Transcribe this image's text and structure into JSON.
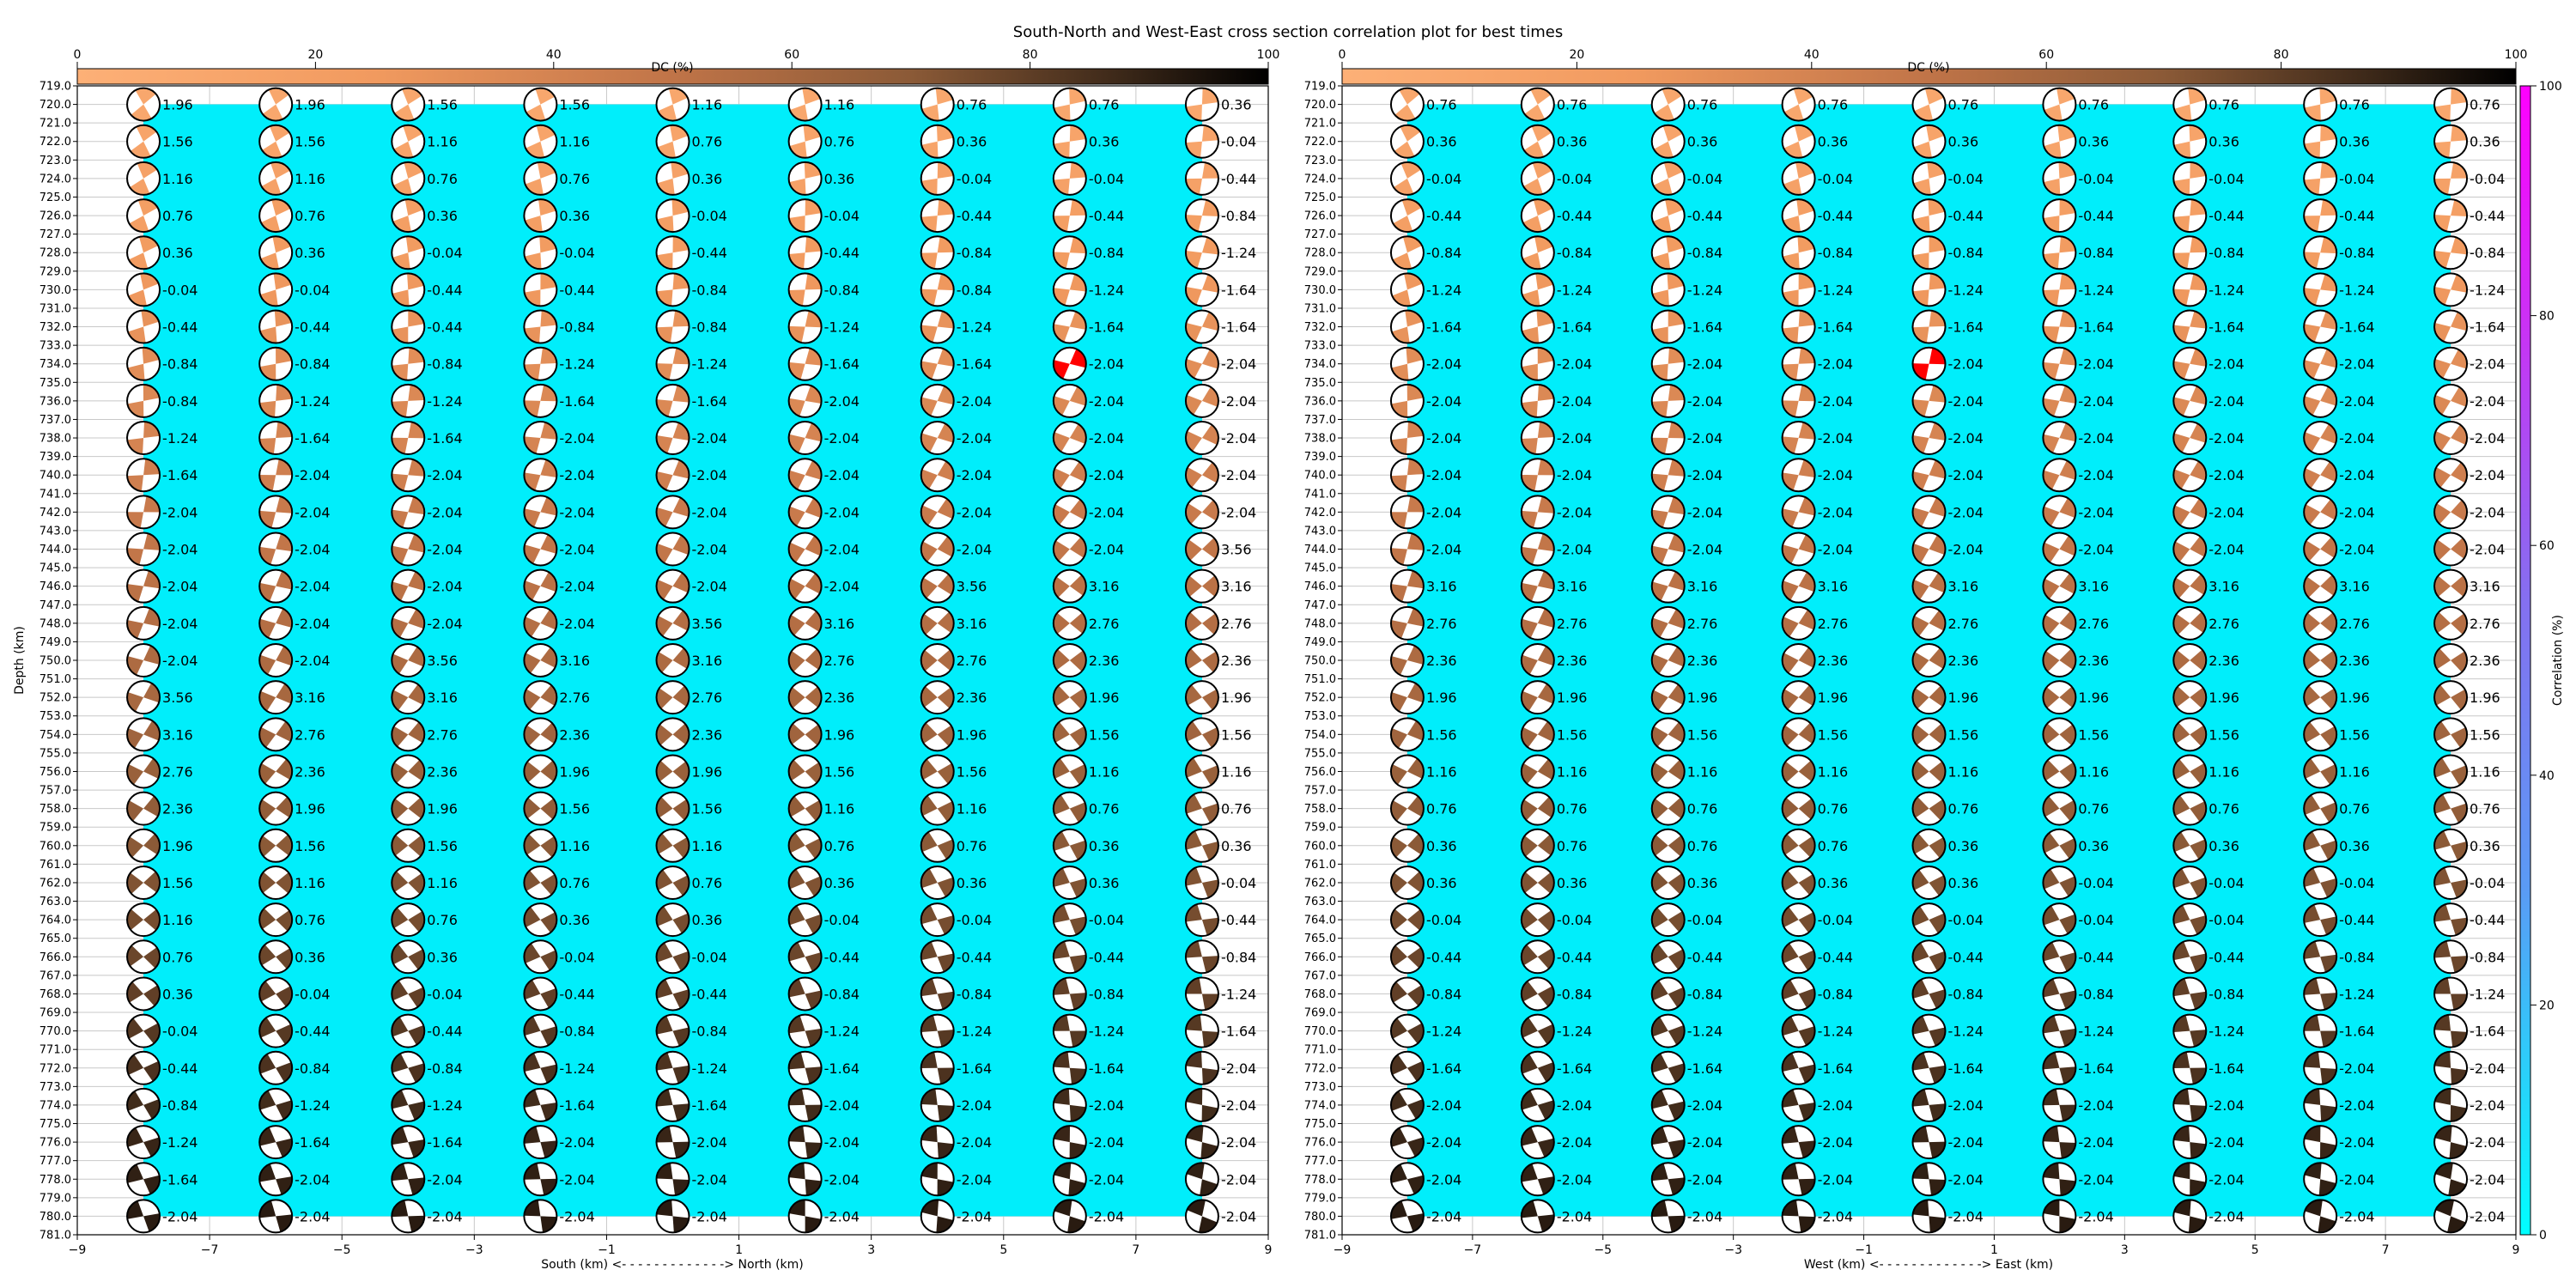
{
  "title": "South-North and West-East cross section correlation plot for best times",
  "colors": {
    "background_fill": "#00eefb",
    "best_fill": "#ff0000",
    "grid": "#c8c8c8",
    "dc_colormap": [
      "#fdb077",
      "#f19a5f",
      "#c07448",
      "#8b5a37",
      "#3a2718",
      "#000000"
    ],
    "corr_colormap": [
      "#00ffff",
      "#5a9bf5",
      "#8470f0",
      "#cc30f5",
      "#ff00ff"
    ]
  },
  "chart_data": [
    {
      "type": "scatter",
      "panel": "left",
      "xlabel": "South (km) <- - - - - - - - - - - - -> North (km)",
      "ylabel": "Depth (km)",
      "xlim": [
        -9,
        9
      ],
      "ylim": [
        781.0,
        719.0
      ],
      "x_ticks": [
        "−9",
        "−7",
        "−5",
        "−3",
        "−1",
        "1",
        "3",
        "5",
        "7",
        "9"
      ],
      "y_ticks": [
        "719.0",
        "720.0",
        "721.0",
        "722.0",
        "723.0",
        "724.0",
        "725.0",
        "726.0",
        "727.0",
        "728.0",
        "729.0",
        "730.0",
        "731.0",
        "732.0",
        "733.0",
        "734.0",
        "735.0",
        "736.0",
        "737.0",
        "738.0",
        "739.0",
        "740.0",
        "741.0",
        "742.0",
        "743.0",
        "744.0",
        "745.0",
        "746.0",
        "747.0",
        "748.0",
        "749.0",
        "750.0",
        "751.0",
        "752.0",
        "753.0",
        "754.0",
        "755.0",
        "756.0",
        "757.0",
        "758.0",
        "759.0",
        "760.0",
        "761.0",
        "762.0",
        "763.0",
        "764.0",
        "765.0",
        "766.0",
        "767.0",
        "768.0",
        "769.0",
        "770.0",
        "771.0",
        "772.0",
        "773.0",
        "774.0",
        "775.0",
        "776.0",
        "777.0",
        "778.0",
        "779.0",
        "780.0",
        "781.0"
      ],
      "x_positions": [
        -8,
        -6,
        -4,
        -2,
        0,
        2,
        4,
        6,
        8
      ],
      "depths": [
        720,
        722,
        724,
        726,
        728,
        730,
        732,
        734,
        736,
        738,
        740,
        742,
        744,
        746,
        748,
        750,
        752,
        754,
        756,
        758,
        760,
        762,
        764,
        766,
        768,
        770,
        772,
        774,
        776,
        778,
        780
      ],
      "best": {
        "x": 6,
        "depth": 734
      },
      "time_labels": [
        [
          "1.96",
          "1.96",
          "1.56",
          "1.56",
          "1.16",
          "1.16",
          "0.76",
          "0.76",
          "0.36"
        ],
        [
          "1.56",
          "1.56",
          "1.16",
          "1.16",
          "0.76",
          "0.76",
          "0.36",
          "0.36",
          "-0.04"
        ],
        [
          "1.16",
          "1.16",
          "0.76",
          "0.76",
          "0.36",
          "0.36",
          "-0.04",
          "-0.04",
          "-0.44"
        ],
        [
          "0.76",
          "0.76",
          "0.36",
          "0.36",
          "-0.04",
          "-0.04",
          "-0.44",
          "-0.44",
          "-0.84"
        ],
        [
          "0.36",
          "0.36",
          "-0.04",
          "-0.04",
          "-0.44",
          "-0.44",
          "-0.84",
          "-0.84",
          "-1.24"
        ],
        [
          "-0.04",
          "-0.04",
          "-0.44",
          "-0.44",
          "-0.84",
          "-0.84",
          "-0.84",
          "-1.24",
          "-1.64"
        ],
        [
          "-0.44",
          "-0.44",
          "-0.44",
          "-0.84",
          "-0.84",
          "-1.24",
          "-1.24",
          "-1.64",
          "-1.64"
        ],
        [
          "-0.84",
          "-0.84",
          "-0.84",
          "-1.24",
          "-1.24",
          "-1.64",
          "-1.64",
          "-2.04",
          "-2.04"
        ],
        [
          "-0.84",
          "-1.24",
          "-1.24",
          "-1.64",
          "-1.64",
          "-2.04",
          "-2.04",
          "-2.04",
          "-2.04"
        ],
        [
          "-1.24",
          "-1.64",
          "-1.64",
          "-2.04",
          "-2.04",
          "-2.04",
          "-2.04",
          "-2.04",
          "-2.04"
        ],
        [
          "-1.64",
          "-2.04",
          "-2.04",
          "-2.04",
          "-2.04",
          "-2.04",
          "-2.04",
          "-2.04",
          "-2.04"
        ],
        [
          "-2.04",
          "-2.04",
          "-2.04",
          "-2.04",
          "-2.04",
          "-2.04",
          "-2.04",
          "-2.04",
          "-2.04"
        ],
        [
          "-2.04",
          "-2.04",
          "-2.04",
          "-2.04",
          "-2.04",
          "-2.04",
          "-2.04",
          "-2.04",
          "3.56"
        ],
        [
          "-2.04",
          "-2.04",
          "-2.04",
          "-2.04",
          "-2.04",
          "-2.04",
          "3.56",
          "3.16",
          "3.16"
        ],
        [
          "-2.04",
          "-2.04",
          "-2.04",
          "-2.04",
          "3.56",
          "3.16",
          "3.16",
          "2.76",
          "2.76"
        ],
        [
          "-2.04",
          "-2.04",
          "3.56",
          "3.16",
          "3.16",
          "2.76",
          "2.76",
          "2.36",
          "2.36"
        ],
        [
          "3.56",
          "3.16",
          "3.16",
          "2.76",
          "2.76",
          "2.36",
          "2.36",
          "1.96",
          "1.96"
        ],
        [
          "3.16",
          "2.76",
          "2.76",
          "2.36",
          "2.36",
          "1.96",
          "1.96",
          "1.56",
          "1.56"
        ],
        [
          "2.76",
          "2.36",
          "2.36",
          "1.96",
          "1.96",
          "1.56",
          "1.56",
          "1.16",
          "1.16"
        ],
        [
          "2.36",
          "1.96",
          "1.96",
          "1.56",
          "1.56",
          "1.16",
          "1.16",
          "0.76",
          "0.76"
        ],
        [
          "1.96",
          "1.56",
          "1.56",
          "1.16",
          "1.16",
          "0.76",
          "0.76",
          "0.36",
          "0.36"
        ],
        [
          "1.56",
          "1.16",
          "1.16",
          "0.76",
          "0.76",
          "0.36",
          "0.36",
          "0.36",
          "-0.04"
        ],
        [
          "1.16",
          "0.76",
          "0.76",
          "0.36",
          "0.36",
          "-0.04",
          "-0.04",
          "-0.04",
          "-0.44"
        ],
        [
          "0.76",
          "0.36",
          "0.36",
          "-0.04",
          "-0.04",
          "-0.44",
          "-0.44",
          "-0.44",
          "-0.84"
        ],
        [
          "0.36",
          "-0.04",
          "-0.04",
          "-0.44",
          "-0.44",
          "-0.84",
          "-0.84",
          "-0.84",
          "-1.24"
        ],
        [
          "-0.04",
          "-0.44",
          "-0.44",
          "-0.84",
          "-0.84",
          "-1.24",
          "-1.24",
          "-1.24",
          "-1.64"
        ],
        [
          "-0.44",
          "-0.84",
          "-0.84",
          "-1.24",
          "-1.24",
          "-1.64",
          "-1.64",
          "-1.64",
          "-2.04"
        ],
        [
          "-0.84",
          "-1.24",
          "-1.24",
          "-1.64",
          "-1.64",
          "-2.04",
          "-2.04",
          "-2.04",
          "-2.04"
        ],
        [
          "-1.24",
          "-1.64",
          "-1.64",
          "-2.04",
          "-2.04",
          "-2.04",
          "-2.04",
          "-2.04",
          "-2.04"
        ],
        [
          "-1.64",
          "-2.04",
          "-2.04",
          "-2.04",
          "-2.04",
          "-2.04",
          "-2.04",
          "-2.04",
          "-2.04"
        ],
        [
          "-2.04",
          "-2.04",
          "-2.04",
          "-2.04",
          "-2.04",
          "-2.04",
          "-2.04",
          "-2.04",
          "-2.04"
        ]
      ]
    },
    {
      "type": "scatter",
      "panel": "right",
      "xlabel": "West (km) <- - - - - - - - - - - - -> East (km)",
      "xlim": [
        -9,
        9
      ],
      "ylim": [
        781.0,
        719.0
      ],
      "x_ticks": [
        "−9",
        "−7",
        "−5",
        "−3",
        "−1",
        "1",
        "3",
        "5",
        "7",
        "9"
      ],
      "y_ticks": [
        "719.0",
        "720.0",
        "721.0",
        "722.0",
        "723.0",
        "724.0",
        "725.0",
        "726.0",
        "727.0",
        "728.0",
        "729.0",
        "730.0",
        "731.0",
        "732.0",
        "733.0",
        "734.0",
        "735.0",
        "736.0",
        "737.0",
        "738.0",
        "739.0",
        "740.0",
        "741.0",
        "742.0",
        "743.0",
        "744.0",
        "745.0",
        "746.0",
        "747.0",
        "748.0",
        "749.0",
        "750.0",
        "751.0",
        "752.0",
        "753.0",
        "754.0",
        "755.0",
        "756.0",
        "757.0",
        "758.0",
        "759.0",
        "760.0",
        "761.0",
        "762.0",
        "763.0",
        "764.0",
        "765.0",
        "766.0",
        "767.0",
        "768.0",
        "769.0",
        "770.0",
        "771.0",
        "772.0",
        "773.0",
        "774.0",
        "775.0",
        "776.0",
        "777.0",
        "778.0",
        "779.0",
        "780.0",
        "781.0"
      ],
      "x_positions": [
        -8,
        -6,
        -4,
        -2,
        0,
        2,
        4,
        6,
        8
      ],
      "depths": [
        720,
        722,
        724,
        726,
        728,
        730,
        732,
        734,
        736,
        738,
        740,
        742,
        744,
        746,
        748,
        750,
        752,
        754,
        756,
        758,
        760,
        762,
        764,
        766,
        768,
        770,
        772,
        774,
        776,
        778,
        780
      ],
      "best": {
        "x": 0,
        "depth": 734
      },
      "time_labels": [
        [
          "0.76",
          "0.76",
          "0.76",
          "0.76",
          "0.76",
          "0.76",
          "0.76",
          "0.76",
          "0.76"
        ],
        [
          "0.36",
          "0.36",
          "0.36",
          "0.36",
          "0.36",
          "0.36",
          "0.36",
          "0.36",
          "0.36"
        ],
        [
          "-0.04",
          "-0.04",
          "-0.04",
          "-0.04",
          "-0.04",
          "-0.04",
          "-0.04",
          "-0.04",
          "-0.04"
        ],
        [
          "-0.44",
          "-0.44",
          "-0.44",
          "-0.44",
          "-0.44",
          "-0.44",
          "-0.44",
          "-0.44",
          "-0.44"
        ],
        [
          "-0.84",
          "-0.84",
          "-0.84",
          "-0.84",
          "-0.84",
          "-0.84",
          "-0.84",
          "-0.84",
          "-0.84"
        ],
        [
          "-1.24",
          "-1.24",
          "-1.24",
          "-1.24",
          "-1.24",
          "-1.24",
          "-1.24",
          "-1.24",
          "-1.24"
        ],
        [
          "-1.64",
          "-1.64",
          "-1.64",
          "-1.64",
          "-1.64",
          "-1.64",
          "-1.64",
          "-1.64",
          "-1.64"
        ],
        [
          "-2.04",
          "-2.04",
          "-2.04",
          "-2.04",
          "-2.04",
          "-2.04",
          "-2.04",
          "-2.04",
          "-2.04"
        ],
        [
          "-2.04",
          "-2.04",
          "-2.04",
          "-2.04",
          "-2.04",
          "-2.04",
          "-2.04",
          "-2.04",
          "-2.04"
        ],
        [
          "-2.04",
          "-2.04",
          "-2.04",
          "-2.04",
          "-2.04",
          "-2.04",
          "-2.04",
          "-2.04",
          "-2.04"
        ],
        [
          "-2.04",
          "-2.04",
          "-2.04",
          "-2.04",
          "-2.04",
          "-2.04",
          "-2.04",
          "-2.04",
          "-2.04"
        ],
        [
          "-2.04",
          "-2.04",
          "-2.04",
          "-2.04",
          "-2.04",
          "-2.04",
          "-2.04",
          "-2.04",
          "-2.04"
        ],
        [
          "-2.04",
          "-2.04",
          "-2.04",
          "-2.04",
          "-2.04",
          "-2.04",
          "-2.04",
          "-2.04",
          "-2.04"
        ],
        [
          "3.16",
          "3.16",
          "3.16",
          "3.16",
          "3.16",
          "3.16",
          "3.16",
          "3.16",
          "3.16"
        ],
        [
          "2.76",
          "2.76",
          "2.76",
          "2.76",
          "2.76",
          "2.76",
          "2.76",
          "2.76",
          "2.76"
        ],
        [
          "2.36",
          "2.36",
          "2.36",
          "2.36",
          "2.36",
          "2.36",
          "2.36",
          "2.36",
          "2.36"
        ],
        [
          "1.96",
          "1.96",
          "1.96",
          "1.96",
          "1.96",
          "1.96",
          "1.96",
          "1.96",
          "1.96"
        ],
        [
          "1.56",
          "1.56",
          "1.56",
          "1.56",
          "1.56",
          "1.56",
          "1.56",
          "1.56",
          "1.56"
        ],
        [
          "1.16",
          "1.16",
          "1.16",
          "1.16",
          "1.16",
          "1.16",
          "1.16",
          "1.16",
          "1.16"
        ],
        [
          "0.76",
          "0.76",
          "0.76",
          "0.76",
          "0.76",
          "0.76",
          "0.76",
          "0.76",
          "0.76"
        ],
        [
          "0.36",
          "0.76",
          "0.76",
          "0.76",
          "0.36",
          "0.36",
          "0.36",
          "0.36",
          "0.36"
        ],
        [
          "0.36",
          "0.36",
          "0.36",
          "0.36",
          "0.36",
          "-0.04",
          "-0.04",
          "-0.04",
          "-0.04"
        ],
        [
          "-0.04",
          "-0.04",
          "-0.04",
          "-0.04",
          "-0.04",
          "-0.04",
          "-0.04",
          "-0.44",
          "-0.44"
        ],
        [
          "-0.44",
          "-0.44",
          "-0.44",
          "-0.44",
          "-0.44",
          "-0.44",
          "-0.44",
          "-0.84",
          "-0.84"
        ],
        [
          "-0.84",
          "-0.84",
          "-0.84",
          "-0.84",
          "-0.84",
          "-0.84",
          "-0.84",
          "-1.24",
          "-1.24"
        ],
        [
          "-1.24",
          "-1.24",
          "-1.24",
          "-1.24",
          "-1.24",
          "-1.24",
          "-1.24",
          "-1.64",
          "-1.64"
        ],
        [
          "-1.64",
          "-1.64",
          "-1.64",
          "-1.64",
          "-1.64",
          "-1.64",
          "-1.64",
          "-2.04",
          "-2.04"
        ],
        [
          "-2.04",
          "-2.04",
          "-2.04",
          "-2.04",
          "-2.04",
          "-2.04",
          "-2.04",
          "-2.04",
          "-2.04"
        ],
        [
          "-2.04",
          "-2.04",
          "-2.04",
          "-2.04",
          "-2.04",
          "-2.04",
          "-2.04",
          "-2.04",
          "-2.04"
        ],
        [
          "-2.04",
          "-2.04",
          "-2.04",
          "-2.04",
          "-2.04",
          "-2.04",
          "-2.04",
          "-2.04",
          "-2.04"
        ],
        [
          "-2.04",
          "-2.04",
          "-2.04",
          "-2.04",
          "-2.04",
          "-2.04",
          "-2.04",
          "-2.04",
          "-2.04"
        ]
      ]
    }
  ],
  "colorbars": {
    "dc": {
      "label": "DC (%)",
      "range": [
        0,
        100
      ],
      "ticks": [
        "0",
        "20",
        "40",
        "60",
        "80",
        "100"
      ]
    },
    "correlation": {
      "label": "Correlation (%)",
      "range": [
        0,
        100
      ],
      "ticks": [
        "0",
        "20",
        "40",
        "60",
        "80",
        "100"
      ]
    }
  }
}
